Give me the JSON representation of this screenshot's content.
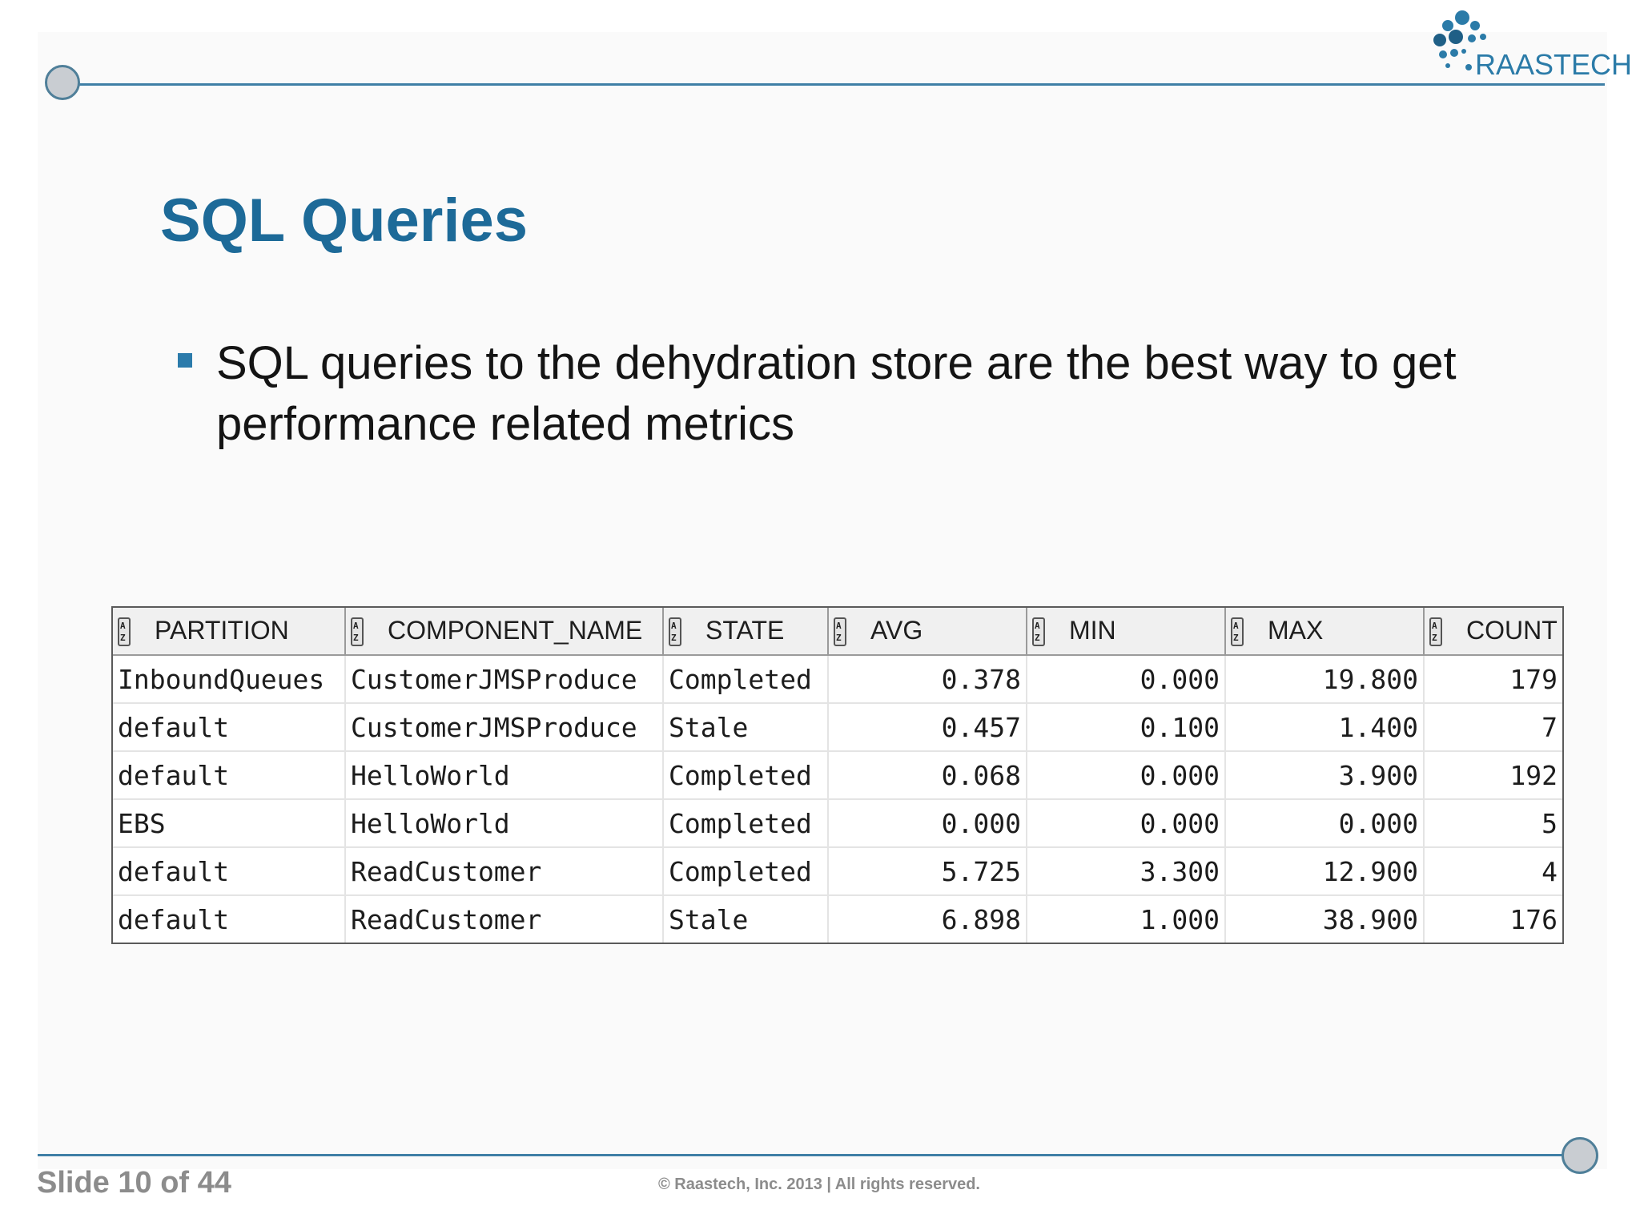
{
  "logo": {
    "text": "RAASTECH"
  },
  "slide": {
    "title": "SQL Queries",
    "bullet": "SQL queries to the dehydration store are the best way to get performance related metrics"
  },
  "table": {
    "columns": [
      "PARTITION",
      "COMPONENT_NAME",
      "STATE",
      "AVG",
      "MIN",
      "MAX",
      "COUNT"
    ],
    "rows": [
      [
        "InboundQueues",
        "CustomerJMSProduce",
        "Completed",
        "0.378",
        "0.000",
        "19.800",
        "179"
      ],
      [
        "default",
        "CustomerJMSProduce",
        "Stale",
        "0.457",
        "0.100",
        "1.400",
        "7"
      ],
      [
        "default",
        "HelloWorld",
        "Completed",
        "0.068",
        "0.000",
        "3.900",
        "192"
      ],
      [
        "EBS",
        "HelloWorld",
        "Completed",
        "0.000",
        "0.000",
        "0.000",
        "5"
      ],
      [
        "default",
        "ReadCustomer",
        "Completed",
        "5.725",
        "3.300",
        "12.900",
        "4"
      ],
      [
        "default",
        "ReadCustomer",
        "Stale",
        "6.898",
        "1.000",
        "38.900",
        "176"
      ]
    ]
  },
  "footer": {
    "slide_number": "Slide 10 of 44",
    "copyright": "© Raastech, Inc. 2013  |  All rights reserved."
  },
  "colors": {
    "accent": "#1d6a98",
    "rule": "#3f7fa6"
  }
}
